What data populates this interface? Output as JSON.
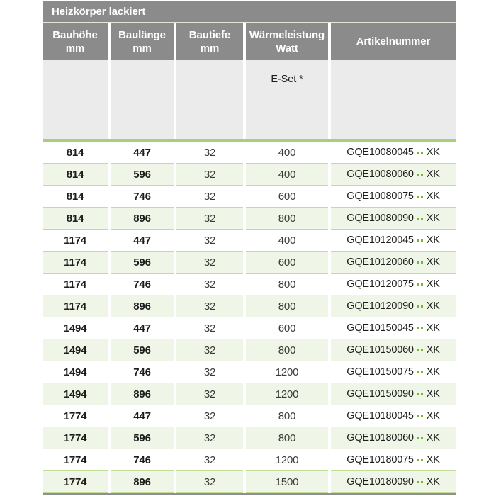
{
  "colors": {
    "header_bg": "#8b8b8b",
    "header_text": "#ffffff",
    "accent_green": "#76b82a",
    "thick_rule_green": "#a7cf77",
    "row_separator_green": "#c2dc9a",
    "row_alt_bg": "#eff5e7",
    "eset_band_bg": "#ebebeb",
    "body_text": "#1d1d1b",
    "bottom_rule_gray": "#909090"
  },
  "table": {
    "title": "Heizkörper lackiert",
    "columns": [
      {
        "line1": "Bauhöhe",
        "line2": "mm"
      },
      {
        "line1": "Baulänge",
        "line2": "mm"
      },
      {
        "line1": "Bautiefe",
        "line2": "mm"
      },
      {
        "line1": "Wärmeleistung",
        "line2": "Watt"
      },
      {
        "line1": "Artikelnummer",
        "line2": ""
      }
    ],
    "subheader": {
      "eset_label": "E-Set *"
    },
    "artikel_dots": "..",
    "rows": [
      {
        "bauhoehe": "814",
        "baulaenge": "447",
        "bautiefe": "32",
        "watt": "400",
        "artikel_prefix": "GQE10080045",
        "artikel_suffix": "XK"
      },
      {
        "bauhoehe": "814",
        "baulaenge": "596",
        "bautiefe": "32",
        "watt": "400",
        "artikel_prefix": "GQE10080060",
        "artikel_suffix": "XK"
      },
      {
        "bauhoehe": "814",
        "baulaenge": "746",
        "bautiefe": "32",
        "watt": "600",
        "artikel_prefix": "GQE10080075",
        "artikel_suffix": "XK"
      },
      {
        "bauhoehe": "814",
        "baulaenge": "896",
        "bautiefe": "32",
        "watt": "800",
        "artikel_prefix": "GQE10080090",
        "artikel_suffix": "XK"
      },
      {
        "bauhoehe": "1174",
        "baulaenge": "447",
        "bautiefe": "32",
        "watt": "400",
        "artikel_prefix": "GQE10120045",
        "artikel_suffix": "XK"
      },
      {
        "bauhoehe": "1174",
        "baulaenge": "596",
        "bautiefe": "32",
        "watt": "600",
        "artikel_prefix": "GQE10120060",
        "artikel_suffix": "XK"
      },
      {
        "bauhoehe": "1174",
        "baulaenge": "746",
        "bautiefe": "32",
        "watt": "800",
        "artikel_prefix": "GQE10120075",
        "artikel_suffix": "XK"
      },
      {
        "bauhoehe": "1174",
        "baulaenge": "896",
        "bautiefe": "32",
        "watt": "800",
        "artikel_prefix": "GQE10120090",
        "artikel_suffix": "XK"
      },
      {
        "bauhoehe": "1494",
        "baulaenge": "447",
        "bautiefe": "32",
        "watt": "600",
        "artikel_prefix": "GQE10150045",
        "artikel_suffix": "XK"
      },
      {
        "bauhoehe": "1494",
        "baulaenge": "596",
        "bautiefe": "32",
        "watt": "800",
        "artikel_prefix": "GQE10150060",
        "artikel_suffix": "XK"
      },
      {
        "bauhoehe": "1494",
        "baulaenge": "746",
        "bautiefe": "32",
        "watt": "1200",
        "artikel_prefix": "GQE10150075",
        "artikel_suffix": "XK"
      },
      {
        "bauhoehe": "1494",
        "baulaenge": "896",
        "bautiefe": "32",
        "watt": "1200",
        "artikel_prefix": "GQE10150090",
        "artikel_suffix": "XK"
      },
      {
        "bauhoehe": "1774",
        "baulaenge": "447",
        "bautiefe": "32",
        "watt": "800",
        "artikel_prefix": "GQE10180045",
        "artikel_suffix": "XK"
      },
      {
        "bauhoehe": "1774",
        "baulaenge": "596",
        "bautiefe": "32",
        "watt": "800",
        "artikel_prefix": "GQE10180060",
        "artikel_suffix": "XK"
      },
      {
        "bauhoehe": "1774",
        "baulaenge": "746",
        "bautiefe": "32",
        "watt": "1200",
        "artikel_prefix": "GQE10180075",
        "artikel_suffix": "XK"
      },
      {
        "bauhoehe": "1774",
        "baulaenge": "896",
        "bautiefe": "32",
        "watt": "1500",
        "artikel_prefix": "GQE10180090",
        "artikel_suffix": "XK"
      }
    ]
  }
}
